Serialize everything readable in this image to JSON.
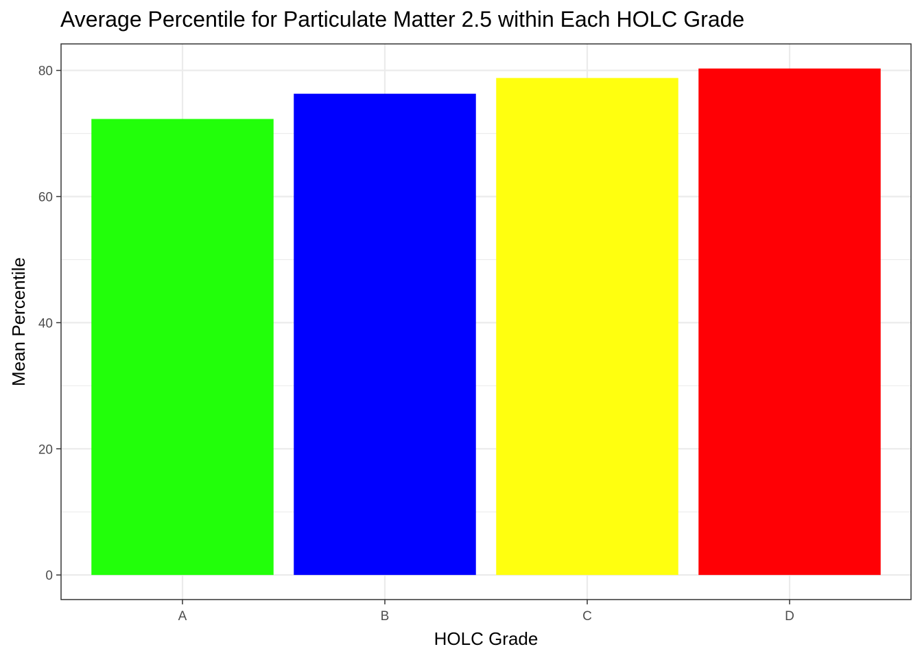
{
  "chart_data": {
    "type": "bar",
    "title": "Average Percentile for Particulate Matter 2.5 within Each HOLC Grade",
    "xlabel": "HOLC Grade",
    "ylabel": "Mean Percentile",
    "categories": [
      "A",
      "B",
      "C",
      "D"
    ],
    "values": [
      72.3,
      76.3,
      78.8,
      80.3
    ],
    "colors": [
      "#22ff0a",
      "#0000ff",
      "#ffff0f",
      "#ff0005"
    ],
    "ylim": [
      -3.9,
      84.2
    ],
    "yticks": [
      0,
      20,
      40,
      60,
      80
    ],
    "grid": true,
    "legend": "none"
  }
}
